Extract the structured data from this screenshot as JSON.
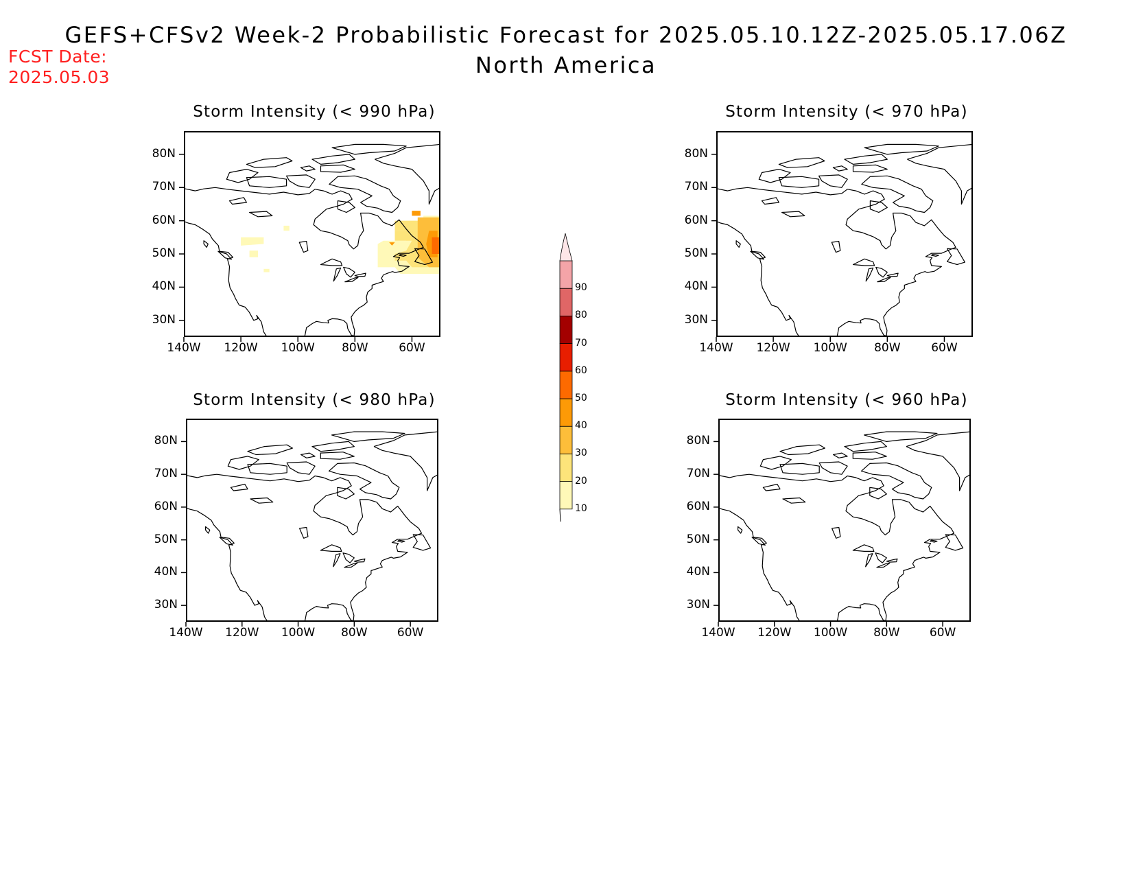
{
  "header": {
    "title": "GEFS+CFSv2 Week-2 Probabilistic Forecast for 2025.05.10.12Z-2025.05.17.06Z",
    "subtitle": "North America",
    "fcst_label": "FCST Date:",
    "fcst_date": "2025.05.03"
  },
  "axes": {
    "lat_ticks": [
      "80N",
      "70N",
      "60N",
      "50N",
      "40N",
      "30N"
    ],
    "lat_values": [
      80,
      70,
      60,
      50,
      40,
      30
    ],
    "lon_ticks": [
      "140W",
      "120W",
      "100W",
      "80W",
      "60W"
    ],
    "lon_values": [
      -140,
      -120,
      -100,
      -80,
      -60
    ],
    "lat_range": [
      25,
      87
    ],
    "lon_range": [
      -140,
      -50
    ]
  },
  "panels": [
    {
      "title": "Storm Intensity (< 990 hPa)"
    },
    {
      "title": "Storm Intensity (< 970 hPa)"
    },
    {
      "title": "Storm Intensity (< 980 hPa)"
    },
    {
      "title": "Storm Intensity (< 960 hPa)"
    }
  ],
  "colorbar": {
    "levels": [
      "10",
      "20",
      "30",
      "40",
      "50",
      "60",
      "70",
      "80",
      "90"
    ],
    "colors": [
      "#fff9b8",
      "#fde47a",
      "#fdbe3a",
      "#fd9a06",
      "#fd6a00",
      "#e81e00",
      "#a30000",
      "#e06666",
      "#f4a4a8",
      "#fde6e8"
    ]
  }
}
